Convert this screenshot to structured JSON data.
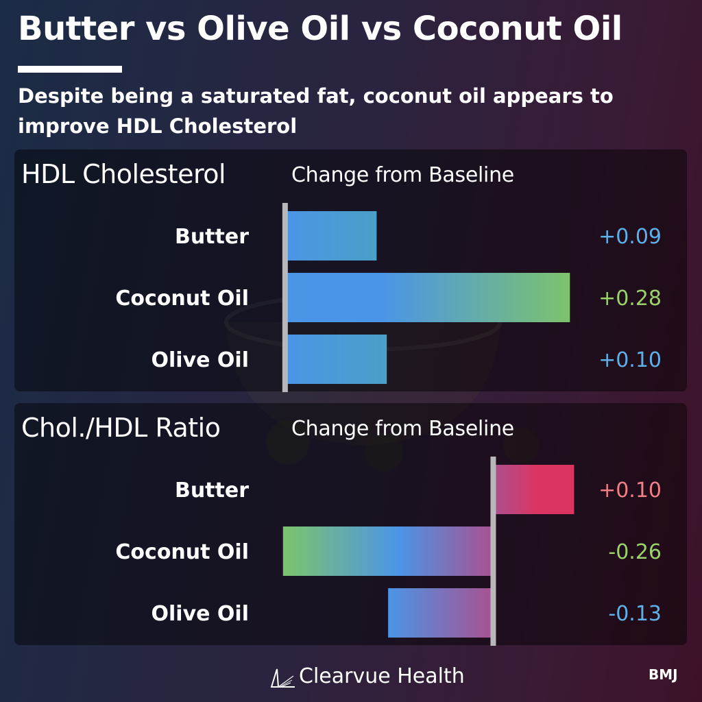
{
  "title": "Butter vs Olive Oil vs Coconut Oil",
  "subtitle": "Despite being a saturated fat, coconut oil appears to improve HDL Cholesterol",
  "brand": "Clearvue Health",
  "source": "BMJ",
  "chart_data": [
    {
      "type": "bar",
      "orientation": "horizontal",
      "title": "HDL Cholesterol",
      "subtitle": "Change from Baseline",
      "categories": [
        "Butter",
        "Coconut Oil",
        "Olive Oil"
      ],
      "values": [
        0.09,
        0.28,
        0.1
      ],
      "value_labels": [
        "+0.09",
        "+0.28",
        "+0.10"
      ],
      "label_colors": [
        "#5fb0ea",
        "#9bd36a",
        "#5fb0ea"
      ],
      "xlim": [
        -0.01,
        0.3
      ]
    },
    {
      "type": "bar",
      "orientation": "horizontal",
      "title": "Chol./HDL Ratio",
      "subtitle": "Change from Baseline",
      "categories": [
        "Butter",
        "Coconut Oil",
        "Olive Oil"
      ],
      "values": [
        0.1,
        -0.26,
        -0.13
      ],
      "value_labels": [
        "+0.10",
        "-0.26",
        "-0.13"
      ],
      "label_colors": [
        "#f07f86",
        "#9bd36a",
        "#5fb0ea"
      ],
      "xlim": [
        -0.27,
        0.12
      ]
    }
  ],
  "colors": {
    "blue": "#4b95e6",
    "green": "#7dc36c",
    "pink": "#dc3461",
    "purple": "#a95190"
  }
}
